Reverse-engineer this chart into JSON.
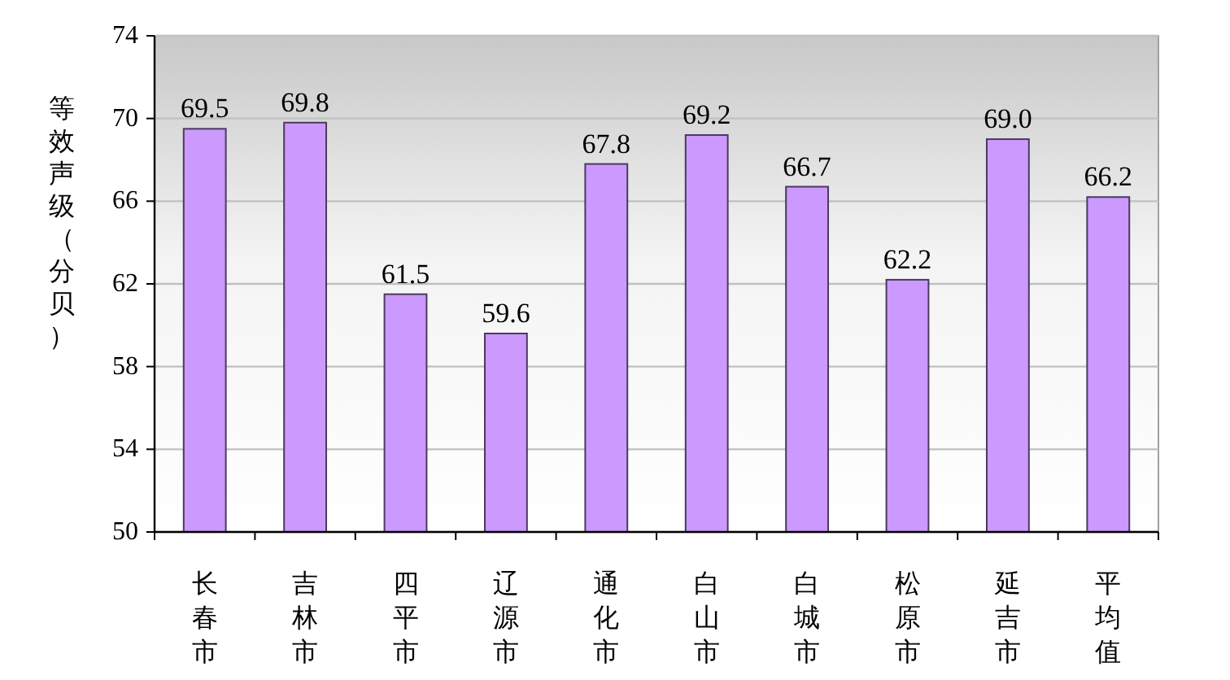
{
  "chart_data": {
    "type": "bar",
    "ylabel": "等效声级（分贝）",
    "categories": [
      "长春市",
      "吉林市",
      "四平市",
      "辽源市",
      "通化市",
      "白山市",
      "白城市",
      "松原市",
      "延吉市",
      "平均值"
    ],
    "values": [
      69.5,
      69.8,
      61.5,
      59.6,
      67.8,
      69.2,
      66.7,
      62.2,
      69.0,
      66.2
    ],
    "value_labels": [
      "69.5",
      "69.8",
      "61.5",
      "59.6",
      "67.8",
      "69.2",
      "66.7",
      "62.2",
      "69.0",
      "66.2"
    ],
    "color": "#cc99ff",
    "ylim": [
      50,
      74
    ],
    "yticks": [
      50,
      54,
      58,
      62,
      66,
      70,
      74
    ],
    "grid": "y"
  }
}
